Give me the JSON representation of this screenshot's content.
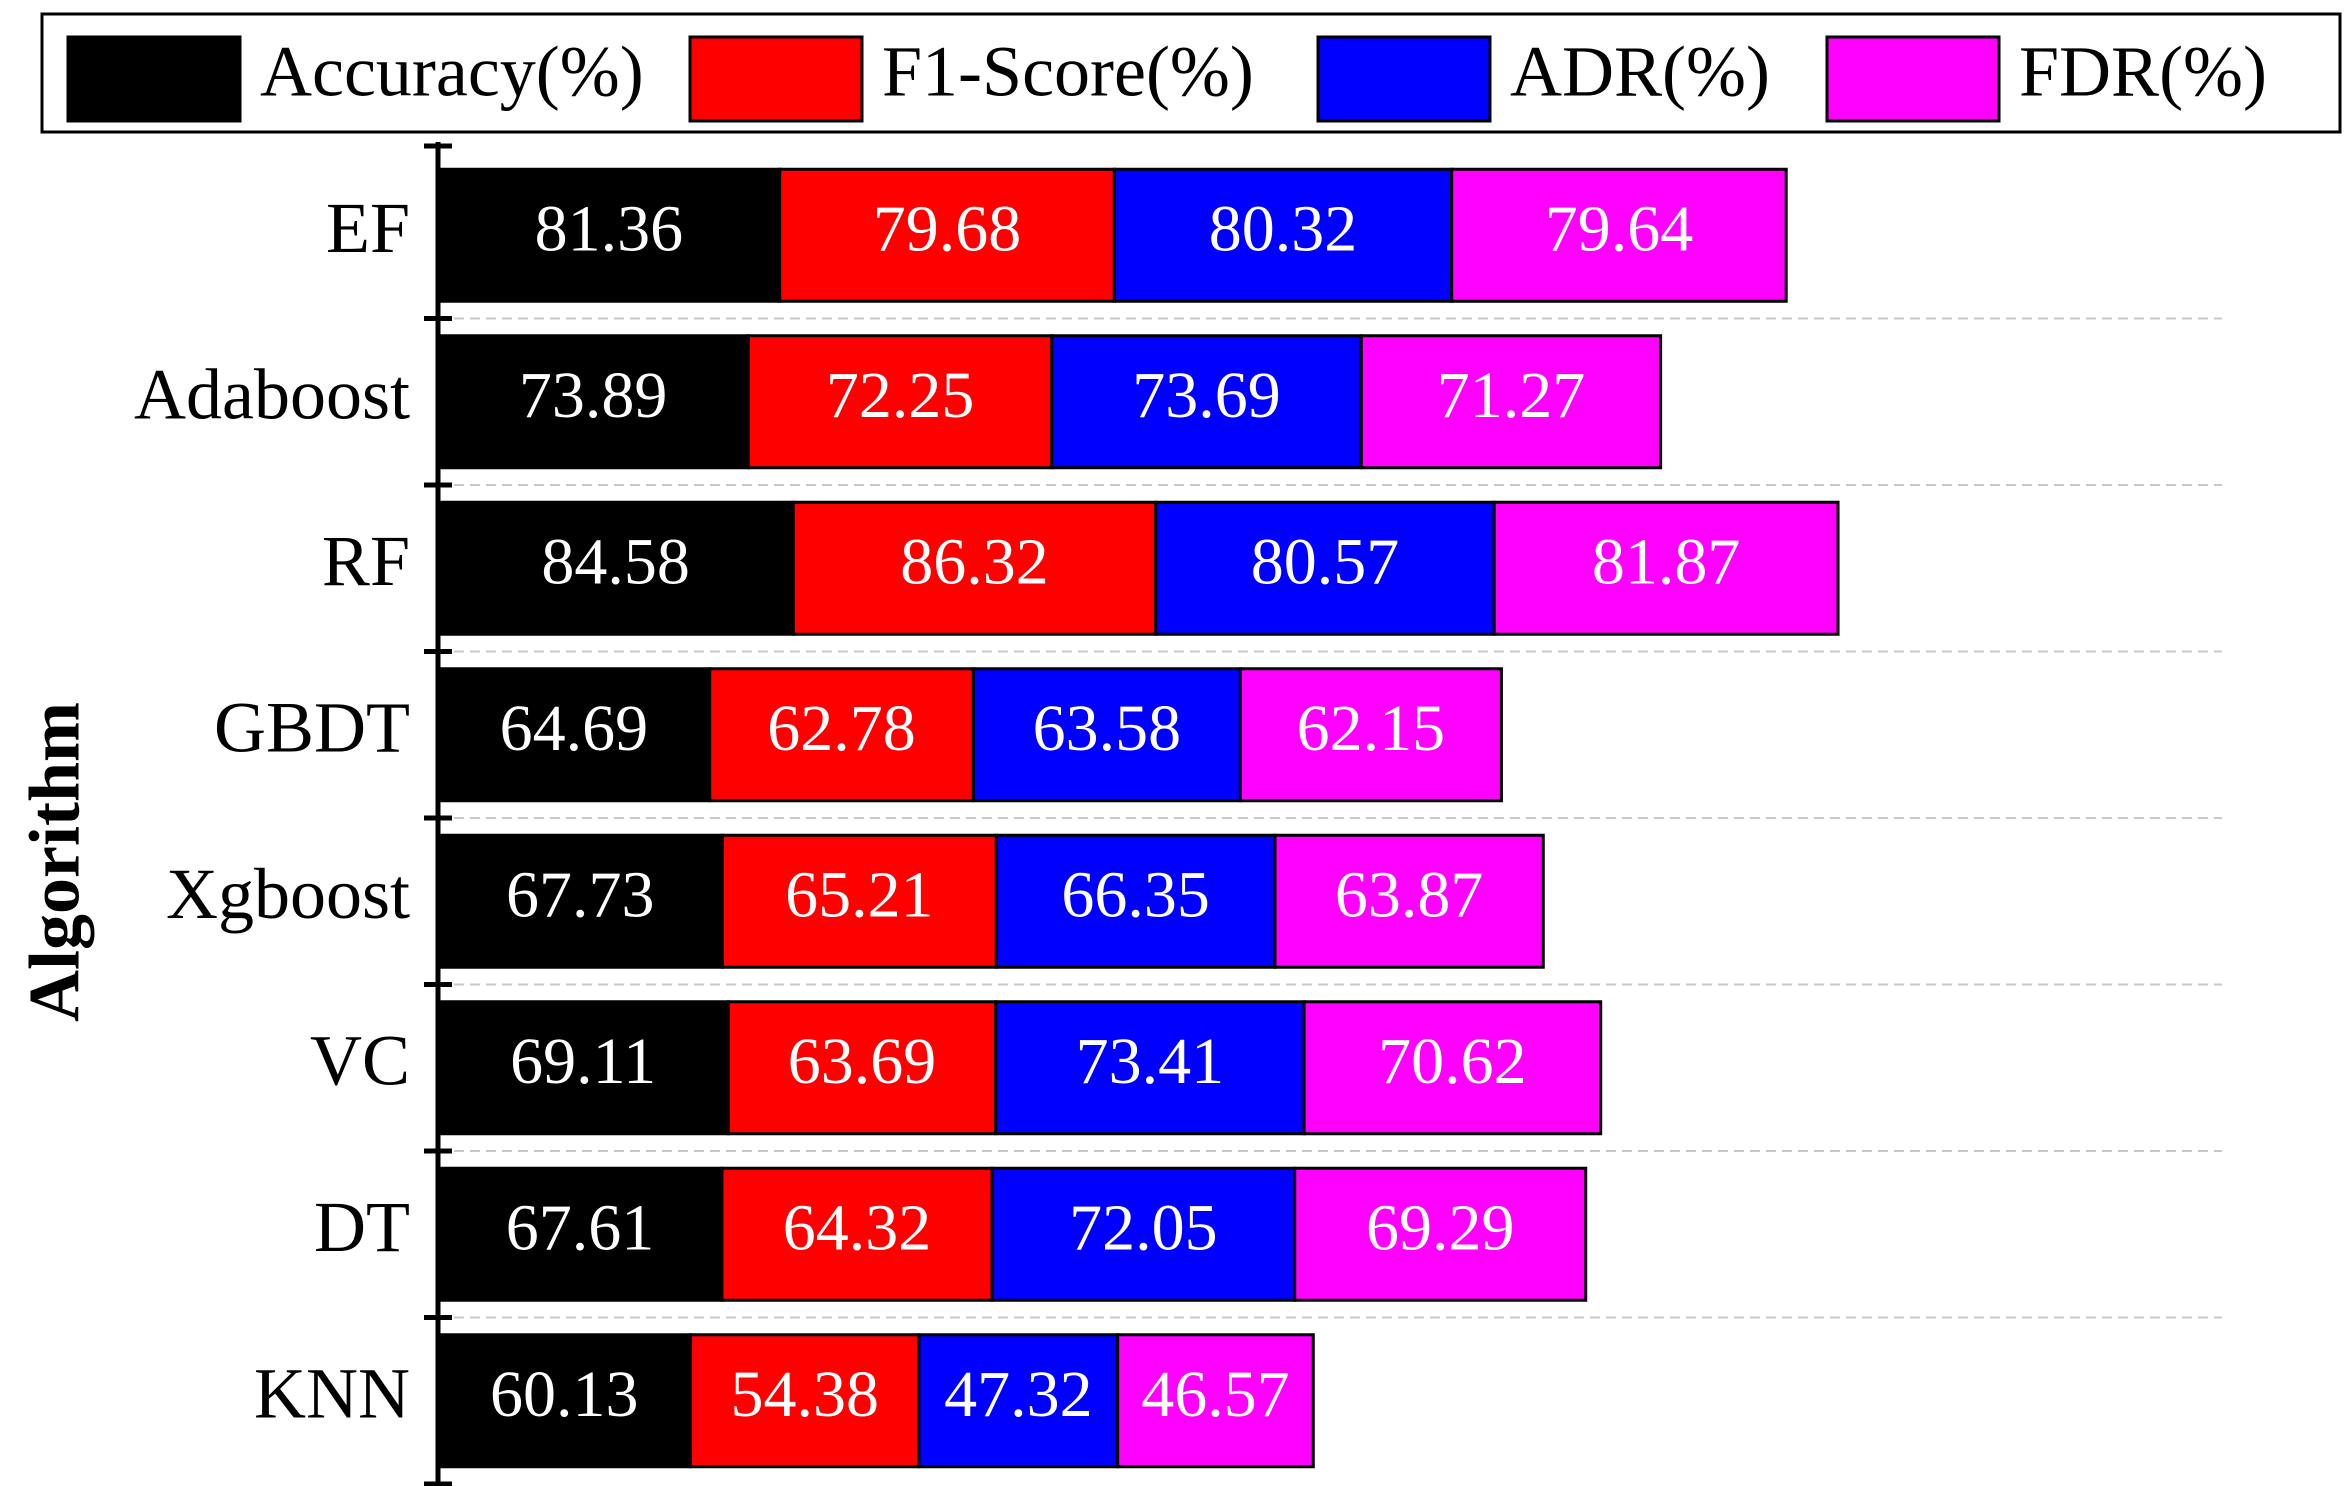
{
  "chart_data": {
    "type": "bar",
    "orientation": "horizontal",
    "stacked": true,
    "title": "",
    "ylabel": "Algorithm",
    "xlabel": "",
    "categories": [
      "EF",
      "Adaboost",
      "RF",
      "GBDT",
      "Xgboost",
      "VC",
      "DT",
      "KNN"
    ],
    "series": [
      {
        "name": "Accuracy(%)",
        "color": "#000000",
        "values": [
          81.36,
          73.89,
          84.58,
          64.69,
          67.73,
          69.11,
          67.61,
          60.13
        ]
      },
      {
        "name": "F1-Score(%)",
        "color": "#ff0000",
        "values": [
          79.68,
          72.25,
          86.32,
          62.78,
          65.21,
          63.69,
          64.32,
          54.38
        ]
      },
      {
        "name": "ADR(%)",
        "color": "#0000ff",
        "values": [
          80.32,
          73.69,
          80.57,
          63.58,
          66.35,
          73.41,
          72.05,
          47.32
        ]
      },
      {
        "name": "FDR(%)",
        "color": "#ff00ff",
        "values": [
          79.64,
          71.27,
          81.87,
          62.15,
          63.87,
          70.62,
          69.29,
          46.57
        ]
      }
    ],
    "legend": "top",
    "grid": "horizontal dashed separators"
  }
}
